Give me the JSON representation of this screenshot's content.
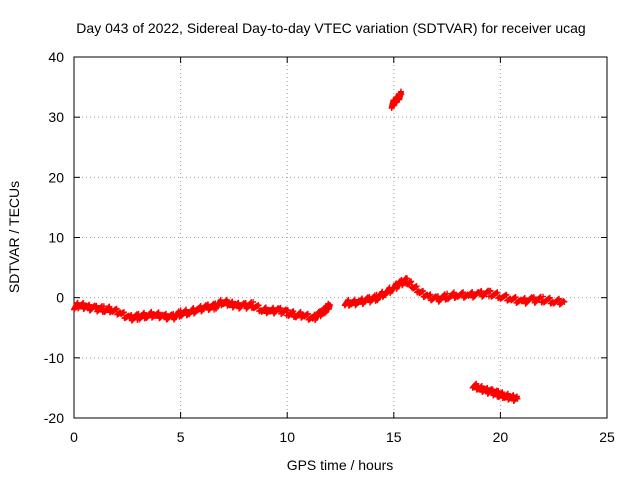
{
  "chart_data": {
    "type": "scatter",
    "title": "Day 043 of 2022, Sidereal Day-to-day VTEC variation (SDTVAR) for receiver ucag",
    "xlabel": "GPS time / hours",
    "ylabel": "SDTVAR / TECUs",
    "xlim": [
      0,
      25
    ],
    "ylim": [
      -20,
      40
    ],
    "xticks": [
      0,
      5,
      10,
      15,
      20,
      25
    ],
    "yticks": [
      -20,
      -10,
      0,
      10,
      20,
      30,
      40
    ],
    "grid": true,
    "marker": "plus",
    "color": "#ff0000",
    "series": [
      {
        "name": "segment-1",
        "x": [
          0.0,
          0.3,
          0.6,
          1.0,
          1.4,
          1.8,
          2.2,
          2.6,
          3.0,
          3.4,
          3.8,
          4.2,
          4.6,
          5.0,
          5.4,
          5.8,
          6.2,
          6.6,
          7.0,
          7.3,
          7.6,
          8.0,
          8.4,
          8.8,
          9.2,
          9.6,
          10.0,
          10.4,
          10.8,
          11.2,
          11.5,
          11.8,
          12.0
        ],
        "y": [
          -1.5,
          -1.2,
          -1.6,
          -1.8,
          -1.9,
          -2.0,
          -2.6,
          -3.4,
          -3.2,
          -2.9,
          -2.8,
          -3.1,
          -3.3,
          -2.6,
          -2.4,
          -2.0,
          -1.6,
          -1.5,
          -0.6,
          -1.0,
          -1.3,
          -1.4,
          -1.2,
          -2.0,
          -2.2,
          -2.1,
          -2.5,
          -2.8,
          -2.9,
          -3.5,
          -2.8,
          -2.0,
          -1.2
        ]
      },
      {
        "name": "segment-2",
        "x": [
          12.7,
          13.0,
          13.4,
          13.8,
          14.2,
          14.6,
          15.0,
          15.3,
          15.6,
          15.9,
          16.2,
          16.6,
          17.0,
          17.5,
          18.0,
          18.5,
          19.0,
          19.5,
          20.0,
          20.5,
          21.0,
          21.5,
          22.0,
          22.5,
          23.0
        ],
        "y": [
          -0.8,
          -0.9,
          -0.7,
          -0.4,
          0.0,
          0.8,
          1.6,
          2.4,
          2.8,
          2.0,
          1.0,
          0.2,
          -0.3,
          0.2,
          0.5,
          0.4,
          0.6,
          0.7,
          0.3,
          -0.2,
          -0.6,
          -0.4,
          -0.3,
          -0.6,
          -0.7
        ]
      },
      {
        "name": "segment-3",
        "x": [
          14.9,
          15.05,
          15.2,
          15.35
        ],
        "y": [
          32.0,
          32.6,
          33.2,
          33.8
        ]
      },
      {
        "name": "segment-4",
        "x": [
          18.7,
          19.0,
          19.3,
          19.6,
          19.9,
          20.2,
          20.5,
          20.8
        ],
        "y": [
          -14.5,
          -15.0,
          -15.4,
          -15.7,
          -16.0,
          -16.3,
          -16.6,
          -16.8
        ]
      }
    ]
  }
}
